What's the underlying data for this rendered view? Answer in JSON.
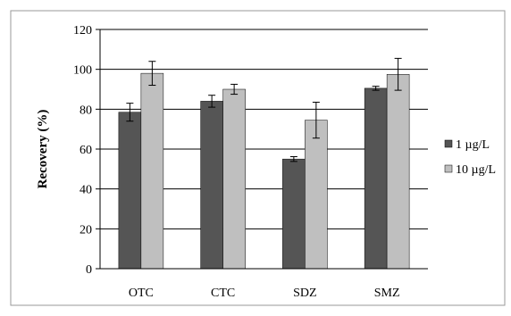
{
  "chart_data": {
    "type": "bar",
    "title": "",
    "xlabel": "",
    "ylabel": "Recovery (%)",
    "categories": [
      "OTC",
      "CTC",
      "SDZ",
      "SMZ"
    ],
    "ylim": [
      0,
      120
    ],
    "yticks": [
      0,
      20,
      40,
      60,
      80,
      100,
      120
    ],
    "grid": true,
    "legend_position": "right",
    "series": [
      {
        "name": "1 µg/L",
        "color": "#555555",
        "values": [
          78.5,
          84,
          55,
          90.5
        ],
        "errors": [
          4.5,
          3,
          1.2,
          1
        ]
      },
      {
        "name": "10 µg/L",
        "color": "#bfbfbf",
        "values": [
          98,
          90,
          74.5,
          97.5
        ],
        "errors": [
          6,
          2.5,
          9,
          8
        ]
      }
    ]
  }
}
